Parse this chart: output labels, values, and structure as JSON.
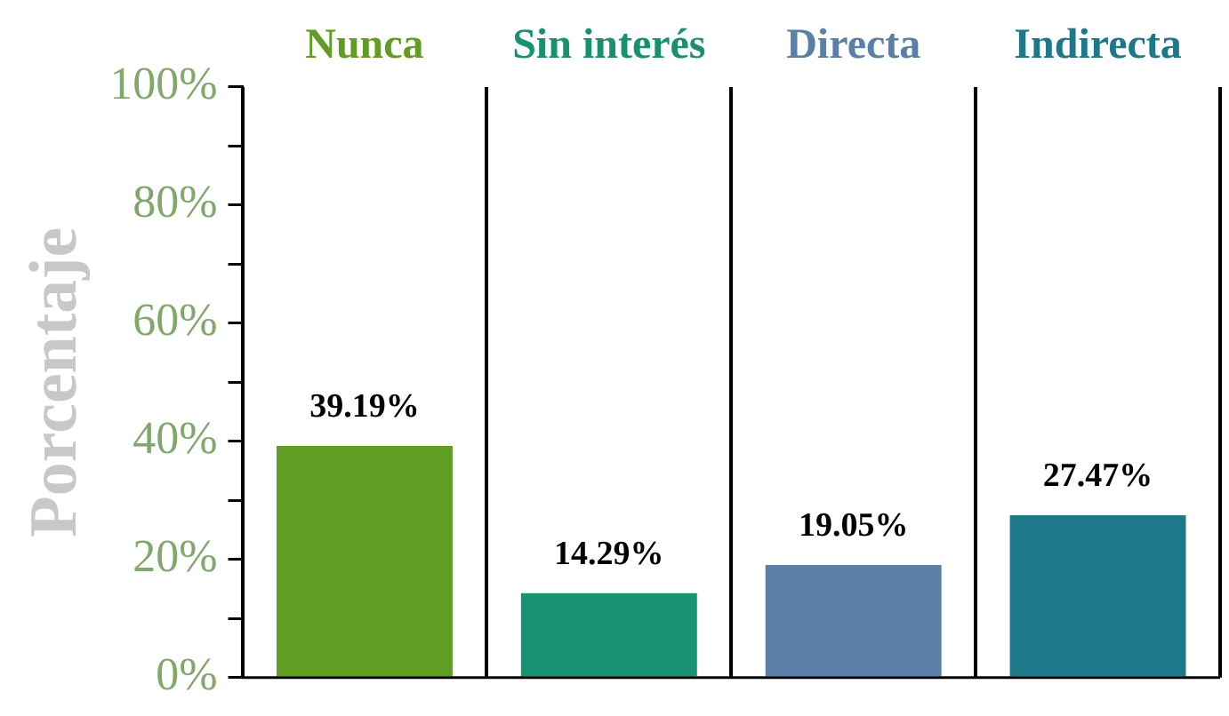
{
  "chart_data": {
    "type": "bar",
    "ylabel": "Porcentaje",
    "categories": [
      "Nunca",
      "Sin interés",
      "Directa",
      "Indirecta"
    ],
    "values": [
      39.19,
      14.29,
      19.05,
      27.47
    ],
    "colors": [
      "#5f9e22",
      "#179170",
      "#5a7fa8",
      "#1f7889"
    ],
    "value_labels": [
      "39.19%",
      "14.29%",
      "19.05%",
      "27.47%"
    ],
    "ylim": [
      0,
      100
    ],
    "yticks": [
      {
        "value": 0,
        "label": "0%"
      },
      {
        "value": 10,
        "label": null
      },
      {
        "value": 20,
        "label": "20%"
      },
      {
        "value": 30,
        "label": null
      },
      {
        "value": 40,
        "label": "40%"
      },
      {
        "value": 50,
        "label": null
      },
      {
        "value": 60,
        "label": "60%"
      },
      {
        "value": 70,
        "label": null
      },
      {
        "value": 80,
        "label": "80%"
      },
      {
        "value": 90,
        "label": null
      },
      {
        "value": 100,
        "label": "100%"
      }
    ],
    "grid": "x",
    "legend": false
  }
}
